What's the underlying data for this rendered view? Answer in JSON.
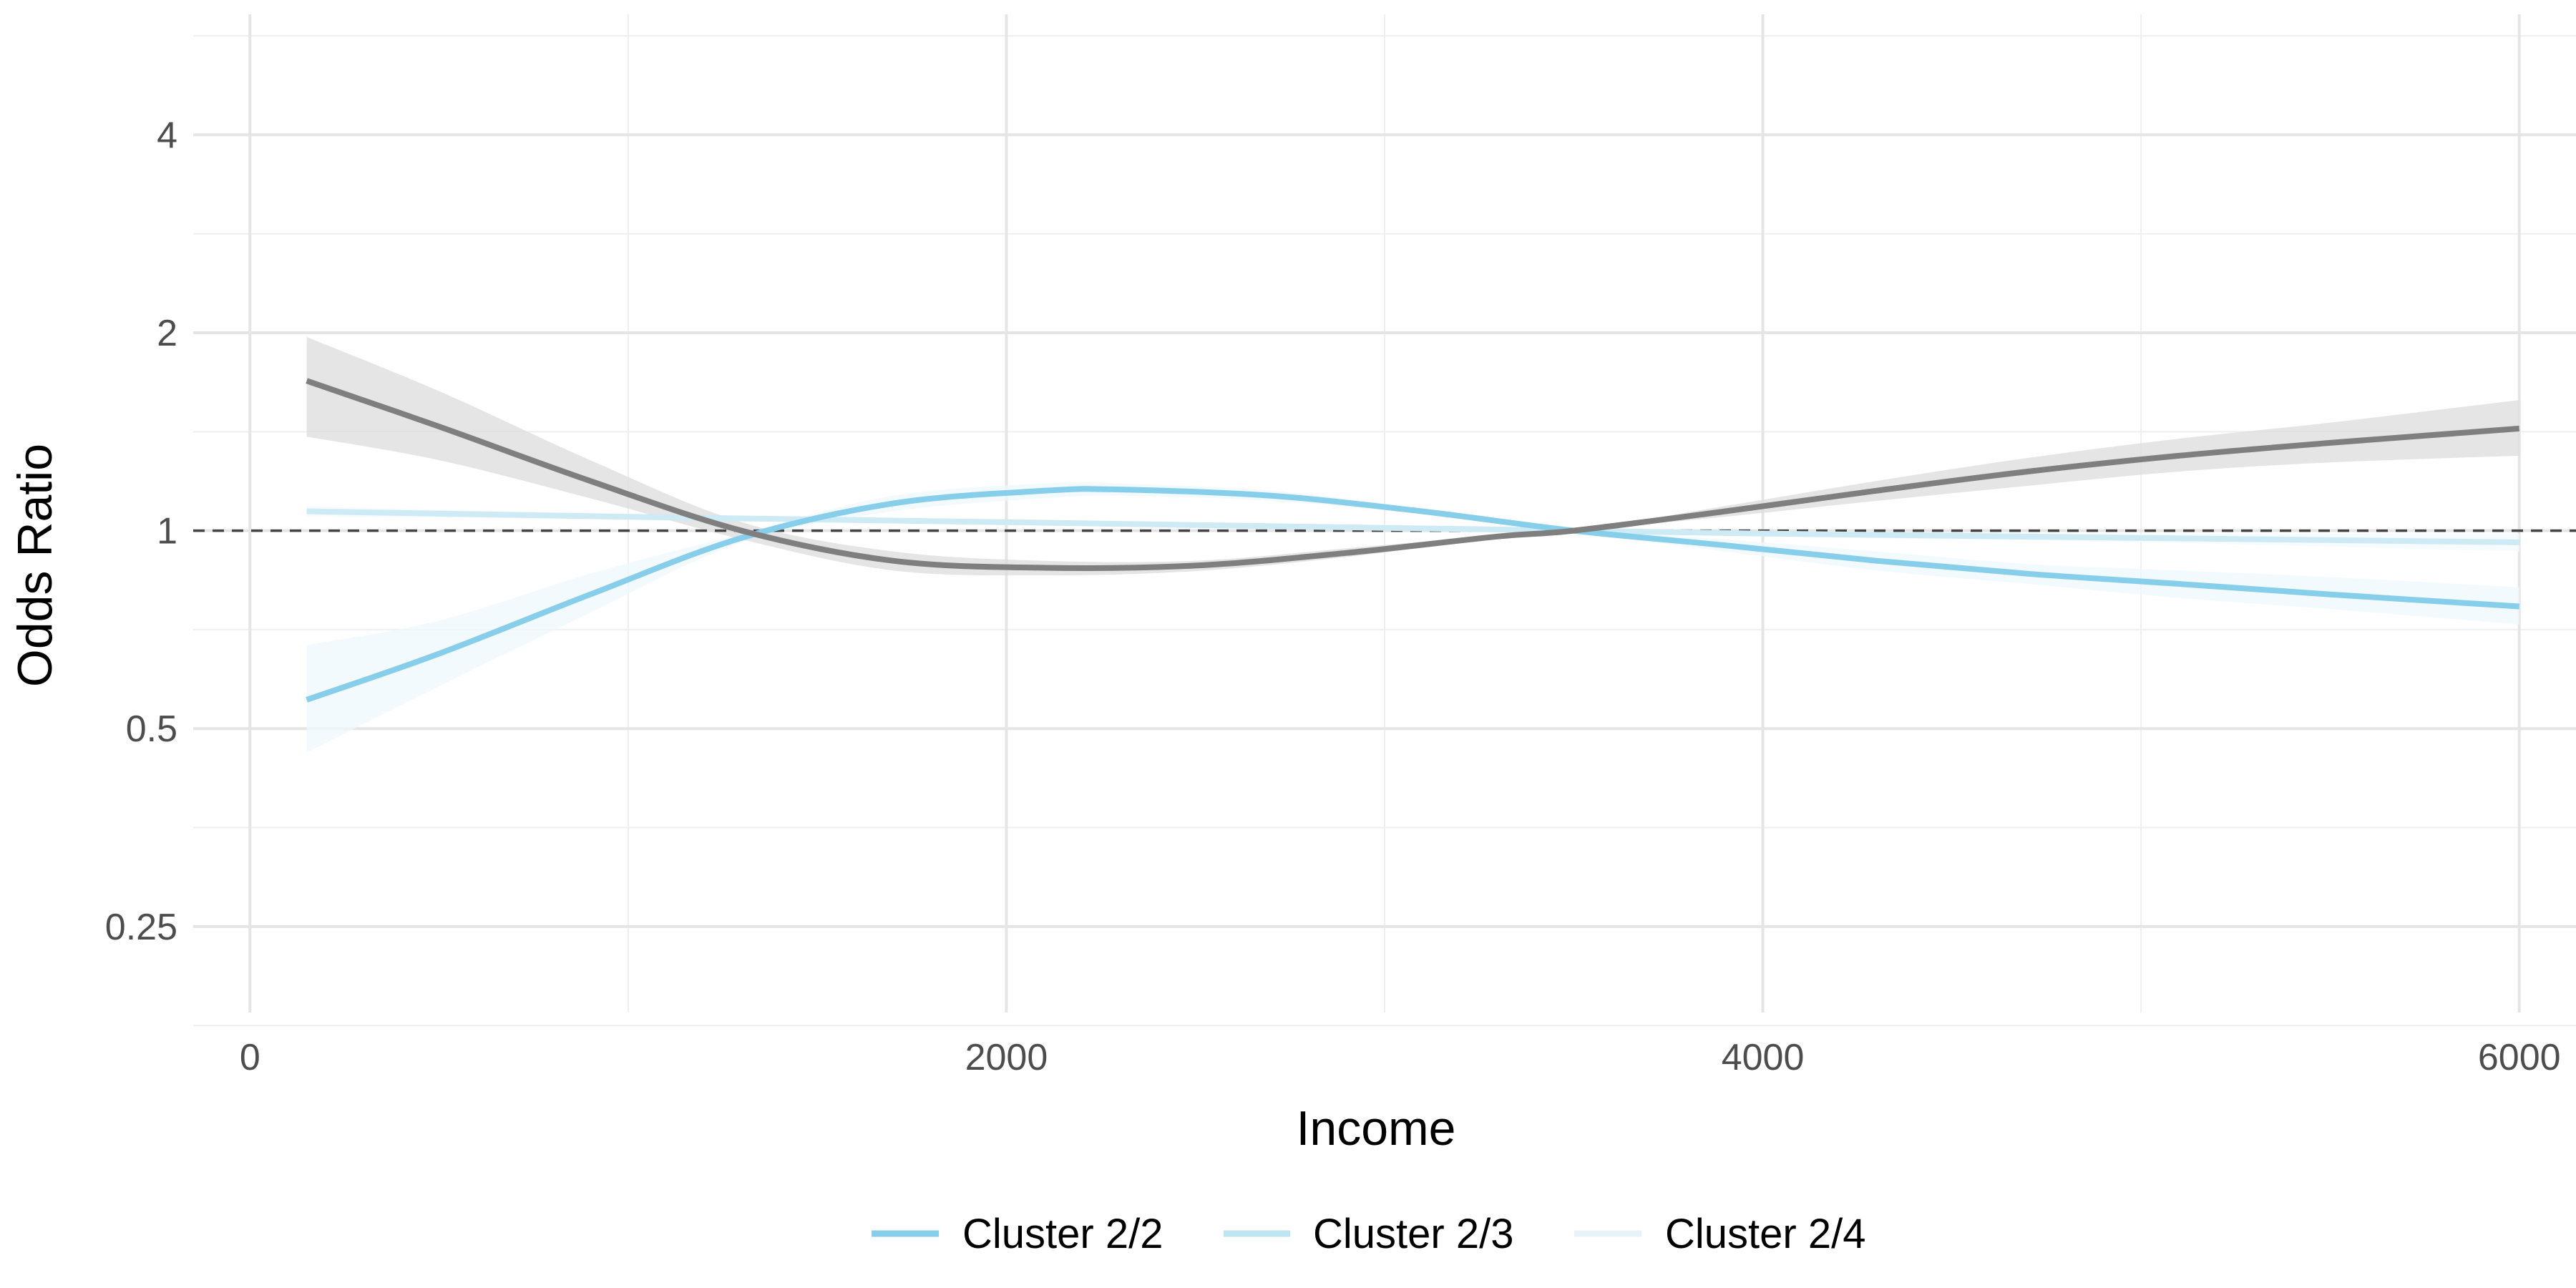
{
  "chart_data": {
    "type": "line",
    "xlabel": "Income",
    "ylabel": "Odds Ratio",
    "x_scale": "linear",
    "y_scale": "log2",
    "xlim": [
      -150,
      6150
    ],
    "ylim": [
      0.185,
      6.1
    ],
    "x_ticks": [
      0,
      2000,
      4000,
      6000
    ],
    "y_ticks": [
      0.25,
      0.5,
      1,
      2,
      4
    ],
    "y_tick_labels": [
      "0.25",
      "0.5",
      "1",
      "2",
      "4"
    ],
    "reference_line": {
      "y": 1,
      "style": "dashed"
    },
    "grid": true,
    "legend_position": "bottom",
    "legend": [
      {
        "label": "Cluster 2/2",
        "color": "#87CEEB"
      },
      {
        "label": "Cluster 2/3",
        "color": "#BFE4F2"
      },
      {
        "label": "Cluster 2/4",
        "color": "#E6F4FA"
      }
    ],
    "series": [
      {
        "color": "#7F7F7F",
        "band_color": "#DCDCDC",
        "x": [
          150,
          500,
          900,
          1300,
          1700,
          2100,
          2500,
          2900,
          3300,
          3500,
          3900,
          4300,
          4700,
          5100,
          5500,
          6000
        ],
        "y": [
          1.69,
          1.44,
          1.19,
          1.0,
          0.9,
          0.878,
          0.885,
          0.925,
          0.98,
          1.0,
          1.07,
          1.15,
          1.23,
          1.3,
          1.36,
          1.43
        ],
        "lower": [
          1.39,
          1.28,
          1.12,
          0.97,
          0.87,
          0.855,
          0.868,
          0.912,
          0.975,
          1.0,
          1.05,
          1.11,
          1.17,
          1.23,
          1.27,
          1.3
        ],
        "upper": [
          1.97,
          1.63,
          1.28,
          1.03,
          0.93,
          0.9,
          0.9,
          0.94,
          0.985,
          1.0,
          1.09,
          1.19,
          1.29,
          1.38,
          1.46,
          1.58
        ]
      },
      {
        "name": "Cluster 2/2",
        "color": "#87CEEB",
        "band_color": "#EEF8FD",
        "x": [
          150,
          500,
          900,
          1300,
          1700,
          2100,
          2300,
          2700,
          3100,
          3500,
          3900,
          4300,
          4700,
          5100,
          5500,
          6000
        ],
        "y": [
          0.553,
          0.65,
          0.8,
          0.975,
          1.1,
          1.15,
          1.155,
          1.13,
          1.07,
          1.0,
          0.95,
          0.9,
          0.86,
          0.83,
          0.8,
          0.767
        ],
        "lower": [
          0.46,
          0.58,
          0.75,
          0.96,
          1.07,
          1.12,
          1.13,
          1.11,
          1.06,
          0.995,
          0.93,
          0.87,
          0.83,
          0.79,
          0.76,
          0.72
        ],
        "upper": [
          0.67,
          0.73,
          0.86,
          0.99,
          1.13,
          1.18,
          1.18,
          1.15,
          1.08,
          1.005,
          0.97,
          0.93,
          0.89,
          0.87,
          0.85,
          0.82
        ]
      },
      {
        "name": "Cluster 2/3",
        "color": "#CDEAF5",
        "band_color": "#F3FAFD",
        "x": [
          150,
          1000,
          2000,
          3000,
          3500,
          4000,
          5000,
          6000
        ],
        "y": [
          1.07,
          1.05,
          1.03,
          1.01,
          1.0,
          0.99,
          0.975,
          0.96
        ],
        "lower": [
          1.05,
          1.04,
          1.02,
          1.005,
          0.998,
          0.98,
          0.96,
          0.93
        ],
        "upper": [
          1.09,
          1.06,
          1.04,
          1.015,
          1.002,
          1.0,
          0.99,
          0.99
        ]
      }
    ]
  }
}
